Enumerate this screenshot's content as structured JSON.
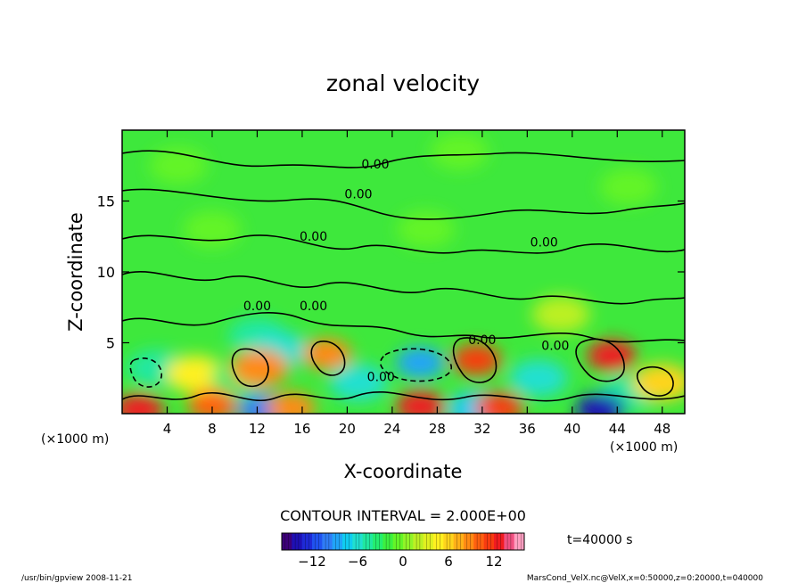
{
  "chart_data": {
    "type": "heatmap",
    "title": "zonal velocity",
    "xlabel": "X-coordinate",
    "ylabel": "Z-coordinate",
    "x_unit": "(×1000 m)",
    "x_unit_right": "(×1000 m)",
    "xlim": [
      0,
      50
    ],
    "ylim": [
      0,
      20
    ],
    "xticks": [
      4,
      8,
      12,
      16,
      20,
      24,
      28,
      32,
      36,
      40,
      44,
      48
    ],
    "yticks": [
      5,
      10,
      15
    ],
    "contour_interval_text": "CONTOUR INTERVAL = 2.000E+00",
    "contour_labels": [
      {
        "x": 22.5,
        "z": 17.3,
        "text": "0.00"
      },
      {
        "x": 21.0,
        "z": 15.2,
        "text": "0.00"
      },
      {
        "x": 17.0,
        "z": 12.2,
        "text": "0.00"
      },
      {
        "x": 37.5,
        "z": 11.8,
        "text": "0.00"
      },
      {
        "x": 12.0,
        "z": 7.3,
        "text": "0.00"
      },
      {
        "x": 17.0,
        "z": 7.3,
        "text": "0.00"
      },
      {
        "x": 32.0,
        "z": 4.9,
        "text": "0.00"
      },
      {
        "x": 38.5,
        "z": 4.5,
        "text": "0.00"
      },
      {
        "x": 23.0,
        "z": 2.3,
        "text": "0.00"
      }
    ],
    "colorbar": {
      "min": -16,
      "max": 16,
      "ticks": [
        -12,
        -6,
        0,
        6,
        12
      ],
      "colors": [
        "#3c0078",
        "#1e10b4",
        "#1e2ad6",
        "#2052f0",
        "#2f7cf6",
        "#20a4f8",
        "#10ccf0",
        "#20e0d0",
        "#20e8a0",
        "#24ee70",
        "#3cf040",
        "#64f428",
        "#90f428",
        "#bcf024",
        "#e0f020",
        "#fff020",
        "#ffd41c",
        "#ffb018",
        "#ff8a14",
        "#ff6010",
        "#f83c10",
        "#f01c20",
        "#f05080",
        "#ff9ec0"
      ]
    },
    "cells": [
      {
        "x": 5,
        "z": 17.5,
        "v": -1
      },
      {
        "x": 30,
        "z": 18.5,
        "v": -1
      },
      {
        "x": 8,
        "z": 13,
        "v": -1
      },
      {
        "x": 27,
        "z": 13,
        "v": -1
      },
      {
        "x": 45,
        "z": 16,
        "v": -1
      },
      {
        "x": 39,
        "z": 7,
        "v": 2.5
      },
      {
        "x": 12,
        "z": 5.5,
        "v": -5
      },
      {
        "x": 14,
        "z": 4.5,
        "v": -6
      },
      {
        "x": 3,
        "z": 3.2,
        "v": -5
      },
      {
        "x": 6.5,
        "z": 2.8,
        "v": 5
      },
      {
        "x": 10.5,
        "z": 2.5,
        "v": -4
      },
      {
        "x": 12.2,
        "z": 3.2,
        "v": 8
      },
      {
        "x": 18.2,
        "z": 4.2,
        "v": 9
      },
      {
        "x": 21,
        "z": 2.2,
        "v": -6
      },
      {
        "x": 26.5,
        "z": 3.6,
        "v": -9
      },
      {
        "x": 31.5,
        "z": 3.8,
        "v": 11
      },
      {
        "x": 37,
        "z": 2.5,
        "v": -6
      },
      {
        "x": 43.5,
        "z": 4.1,
        "v": 12
      },
      {
        "x": 45,
        "z": 1.5,
        "v": -5
      },
      {
        "x": 48,
        "z": 2.2,
        "v": 6
      },
      {
        "x": 1.5,
        "z": 0.3,
        "v": 12
      },
      {
        "x": 8,
        "z": 0.6,
        "v": 10
      },
      {
        "x": 12.5,
        "z": 0.3,
        "v": -10
      },
      {
        "x": 15,
        "z": 0.4,
        "v": 9
      },
      {
        "x": 26.5,
        "z": 0.5,
        "v": 13
      },
      {
        "x": 31.5,
        "z": 0.3,
        "v": -8
      },
      {
        "x": 33.5,
        "z": 0.4,
        "v": 11
      },
      {
        "x": 42.5,
        "z": 0.3,
        "v": -14
      }
    ]
  },
  "footer": {
    "left": "/usr/bin/gpview  2008-11-21",
    "right": "MarsCond_VelX.nc@VelX,x=0:50000,z=0:20000,t=040000",
    "time": "t=40000 s"
  }
}
